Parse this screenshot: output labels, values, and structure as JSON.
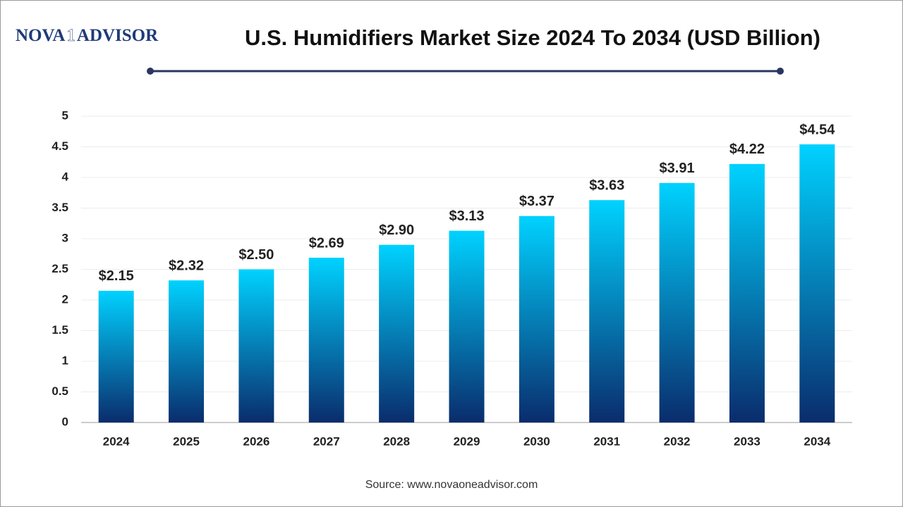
{
  "logo": {
    "left": "NOVA",
    "mark": "1",
    "right": "ADVISOR"
  },
  "chart_data": {
    "type": "bar",
    "title": "U.S. Humidifiers Market Size 2024 To 2034 (USD Billion)",
    "categories": [
      "2024",
      "2025",
      "2026",
      "2027",
      "2028",
      "2029",
      "2030",
      "2031",
      "2032",
      "2033",
      "2034"
    ],
    "values": [
      2.15,
      2.32,
      2.5,
      2.69,
      2.9,
      3.13,
      3.37,
      3.63,
      3.91,
      4.22,
      4.54
    ],
    "value_labels": [
      "$2.15",
      "$2.32",
      "$2.50",
      "$2.69",
      "$2.90",
      "$3.13",
      "$3.37",
      "$3.63",
      "$3.91",
      "$4.22",
      "$4.54"
    ],
    "gradient": [
      "#00d2ff",
      "#0a2c6c"
    ],
    "ylim": [
      0,
      5
    ],
    "yticks": [
      0,
      0.5,
      1,
      1.5,
      2,
      2.5,
      3,
      3.5,
      4,
      4.5,
      5
    ],
    "grid": true,
    "source": "Source: www.novaoneadvisor.com"
  }
}
